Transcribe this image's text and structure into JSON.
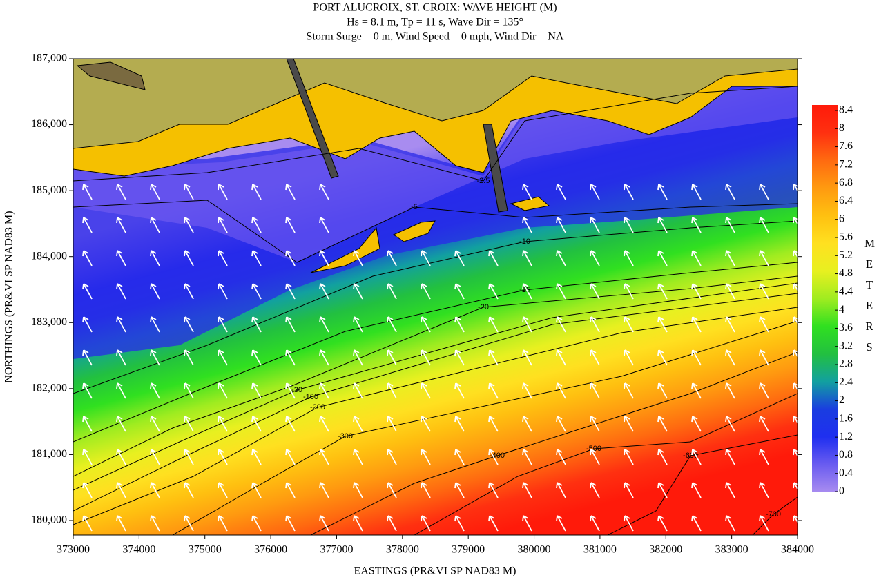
{
  "chart_data": {
    "type": "contour",
    "title": "PORT ALUCROIX, ST. CROIX: WAVE HEIGHT (M)",
    "subtitle": "Hs = 8.1 m, Tp = 11 s, Wave Dir = 135°",
    "subtitle2": "Storm Surge = 0 m, Wind Speed = 0 mph, Wind Dir = NA",
    "xlabel": "EASTINGS (PR&VI SP NAD83 M)",
    "ylabel": "NORTHINGS (PR&VI SP NAD83 M)",
    "xlim": [
      373000,
      384000
    ],
    "ylim": [
      179780,
      187000
    ],
    "xticks": [
      373000,
      374000,
      375000,
      376000,
      377000,
      378000,
      379000,
      380000,
      381000,
      382000,
      383000,
      384000
    ],
    "yticks": [
      {
        "value": 180000,
        "label": "180,000"
      },
      {
        "value": 181000,
        "label": "181,000"
      },
      {
        "value": 182000,
        "label": "182,000"
      },
      {
        "value": 183000,
        "label": "183,000"
      },
      {
        "value": 184000,
        "label": "184,000"
      },
      {
        "value": 185000,
        "label": "185,000"
      },
      {
        "value": 186000,
        "label": "186,000"
      },
      {
        "value": 187000,
        "label": "187,000"
      }
    ],
    "contour_levels": [
      -2.5,
      -5,
      -10,
      -15,
      -20,
      -30,
      -100,
      -200,
      -300,
      -400,
      -500,
      -600,
      -700
    ],
    "colorbar": {
      "label": "METERS",
      "lim": [
        0,
        8.4
      ],
      "ticks": [
        0,
        0.4,
        0.8,
        1.2,
        1.6,
        2,
        2.4,
        2.8,
        3.2,
        3.6,
        4,
        4.4,
        4.8,
        5.2,
        5.6,
        6,
        6.4,
        6.8,
        7.2,
        7.6,
        8,
        8.4
      ],
      "colorscale": [
        "#a88cf0",
        "#6a5cf0",
        "#1f2ff0",
        "#1a3de0",
        "#12a0a0",
        "#22c040",
        "#30e020",
        "#a0ec20",
        "#e8f020",
        "#ffe020",
        "#ffc010",
        "#ff9a10",
        "#ff6a10",
        "#ff3010",
        "#ff1a0a"
      ]
    },
    "arrow_color": "#ffffff"
  }
}
